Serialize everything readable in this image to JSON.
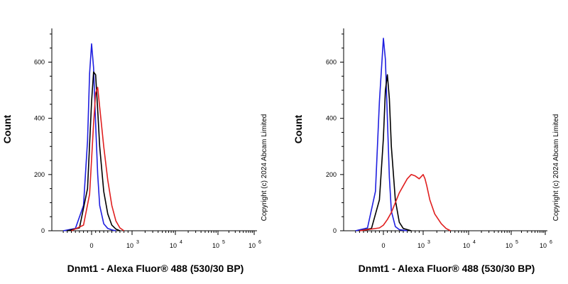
{
  "panels": [
    {
      "ylabel": "Count",
      "xlabel": "Dnmt1 - Alexa Fluor® 488 (530/30 BP)",
      "copyright": "Copyright (c) 2024 Abcam Limited"
    },
    {
      "ylabel": "Count",
      "xlabel": "Dnmt1 - Alexa Fluor® 488 (530/30 BP)",
      "copyright": "Copyright (c) 2024 Abcam Limited"
    }
  ],
  "colors": {
    "blue": "#1f1fe0",
    "black": "#000000",
    "red": "#e01f1f"
  },
  "chart_data": [
    {
      "type": "line",
      "xscale": "biexponential",
      "ylabel": "Count",
      "xlabel": "Dnmt1 - Alexa Fluor® 488 (530/30 BP)",
      "ylim": [
        0,
        720
      ],
      "yticks": [
        0,
        200,
        400,
        600
      ],
      "xticks": [
        {
          "base": "0",
          "exp": ""
        },
        {
          "base": "10",
          "exp": "3"
        },
        {
          "base": "10",
          "exp": "4"
        },
        {
          "base": "10",
          "exp": "5"
        },
        {
          "base": "10",
          "exp": "6"
        }
      ],
      "series": [
        {
          "color": "blue",
          "x": [
            -700,
            -400,
            -200,
            -100,
            -50,
            0,
            50,
            100,
            150,
            200,
            300,
            400,
            500,
            600
          ],
          "y": [
            0,
            8,
            90,
            320,
            560,
            665,
            580,
            380,
            200,
            90,
            25,
            8,
            3,
            0
          ]
        },
        {
          "color": "black",
          "x": [
            -600,
            -300,
            -100,
            0,
            50,
            100,
            150,
            200,
            300,
            400,
            500,
            600,
            700
          ],
          "y": [
            0,
            10,
            150,
            460,
            565,
            555,
            430,
            300,
            140,
            60,
            20,
            6,
            0
          ]
        },
        {
          "color": "red",
          "x": [
            -500,
            -200,
            -50,
            50,
            100,
            150,
            200,
            300,
            400,
            500,
            600,
            700,
            800
          ],
          "y": [
            0,
            20,
            130,
            380,
            490,
            510,
            440,
            300,
            180,
            90,
            35,
            10,
            0
          ]
        }
      ]
    },
    {
      "type": "line",
      "xscale": "biexponential",
      "ylabel": "Count",
      "xlabel": "Dnmt1 - Alexa Fluor® 488 (530/30 BP)",
      "ylim": [
        0,
        720
      ],
      "yticks": [
        0,
        200,
        400,
        600
      ],
      "xticks": [
        {
          "base": "0",
          "exp": ""
        },
        {
          "base": "10",
          "exp": "3"
        },
        {
          "base": "10",
          "exp": "4"
        },
        {
          "base": "10",
          "exp": "5"
        },
        {
          "base": "10",
          "exp": "6"
        }
      ],
      "series": [
        {
          "color": "blue",
          "x": [
            -700,
            -400,
            -200,
            -100,
            0,
            50,
            100,
            150,
            200,
            300,
            400,
            600
          ],
          "y": [
            0,
            10,
            140,
            460,
            685,
            610,
            400,
            190,
            70,
            15,
            4,
            0
          ]
        },
        {
          "color": "black",
          "x": [
            -600,
            -300,
            -100,
            0,
            50,
            100,
            150,
            200,
            300,
            400,
            500,
            700
          ],
          "y": [
            0,
            8,
            110,
            330,
            500,
            555,
            470,
            300,
            110,
            30,
            8,
            0
          ]
        },
        {
          "color": "red",
          "x": [
            -600,
            -100,
            0,
            100,
            200,
            300,
            400,
            500,
            600,
            700,
            800,
            900,
            1000,
            1100,
            1200,
            1400,
            1800,
            2500,
            3200,
            4000
          ],
          "y": [
            0,
            10,
            20,
            40,
            65,
            100,
            135,
            160,
            185,
            200,
            195,
            185,
            200,
            185,
            160,
            110,
            60,
            25,
            8,
            0
          ]
        }
      ]
    }
  ]
}
